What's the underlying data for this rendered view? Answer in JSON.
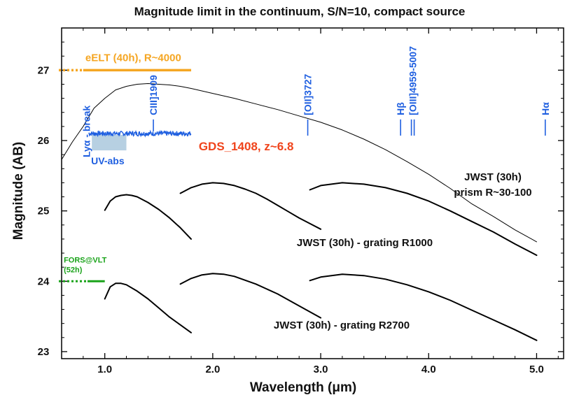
{
  "chart_data": {
    "type": "line",
    "title": "Magnitude limit in the continuum, S/N=10, compact source",
    "xlabel": "Wavelength (μm)",
    "ylabel": "Magnitude (AB)",
    "xlim": [
      0.6,
      5.25
    ],
    "ylim": [
      22.9,
      27.6
    ],
    "x_ticks": [
      1.0,
      2.0,
      3.0,
      4.0,
      5.0
    ],
    "x_tick_labels": [
      "1.0",
      "2.0",
      "3.0",
      "4.0",
      "5.0"
    ],
    "y_ticks": [
      23,
      24,
      25,
      26,
      27
    ],
    "y_tick_labels": [
      "23",
      "24",
      "25",
      "26",
      "27"
    ],
    "grid": false,
    "legend": "none",
    "colors": {
      "curve": "#000000",
      "eelt": "#f5a623",
      "fors": "#1aa31a",
      "galaxy": "#1f5fe0",
      "galaxy_label": "#f0441c",
      "uv_abs": "#b7d0e2",
      "lines": "#1f5fe0"
    },
    "series": [
      {
        "name": "JWST (30h) prism R~30-100",
        "style": "thin",
        "x": [
          0.6,
          0.7,
          0.8,
          0.9,
          1.0,
          1.1,
          1.2,
          1.3,
          1.4,
          1.5,
          1.6,
          1.7,
          1.8,
          2.0,
          2.2,
          2.4,
          2.6,
          2.8,
          3.0,
          3.2,
          3.4,
          3.6,
          3.8,
          4.0,
          4.2,
          4.4,
          4.6,
          4.8,
          5.0
        ],
        "y": [
          25.73,
          25.98,
          26.2,
          26.46,
          26.6,
          26.72,
          26.77,
          26.8,
          26.81,
          26.8,
          26.79,
          26.77,
          26.74,
          26.67,
          26.6,
          26.52,
          26.44,
          26.35,
          26.26,
          26.15,
          26.02,
          25.87,
          25.7,
          25.52,
          25.32,
          25.1,
          24.92,
          24.73,
          24.56
        ]
      },
      {
        "name": "JWST (30h) - grating R1000",
        "style": "thick",
        "segments": [
          {
            "x": [
              1.0,
              1.05,
              1.1,
              1.15,
              1.2,
              1.25,
              1.3,
              1.4,
              1.5,
              1.6,
              1.7,
              1.8
            ],
            "y": [
              25.01,
              25.14,
              25.2,
              25.22,
              25.23,
              25.22,
              25.2,
              25.12,
              25.02,
              24.9,
              24.76,
              24.6
            ]
          },
          {
            "x": [
              1.7,
              1.8,
              1.9,
              2.0,
              2.1,
              2.2,
              2.3,
              2.4,
              2.5,
              2.6,
              2.7,
              2.8,
              2.9,
              3.0
            ],
            "y": [
              25.25,
              25.33,
              25.38,
              25.4,
              25.39,
              25.36,
              25.31,
              25.25,
              25.17,
              25.08,
              24.99,
              24.9,
              24.82,
              24.74
            ]
          },
          {
            "x": [
              2.9,
              3.0,
              3.2,
              3.4,
              3.6,
              3.8,
              4.0,
              4.2,
              4.4,
              4.6,
              4.8,
              5.0
            ],
            "y": [
              25.3,
              25.36,
              25.4,
              25.38,
              25.33,
              25.25,
              25.14,
              25.0,
              24.85,
              24.7,
              24.53,
              24.37
            ]
          }
        ]
      },
      {
        "name": "JWST (30h) - grating R2700",
        "style": "thick",
        "segments": [
          {
            "x": [
              1.0,
              1.05,
              1.1,
              1.15,
              1.2,
              1.3,
              1.4,
              1.5,
              1.6,
              1.7,
              1.8
            ],
            "y": [
              23.75,
              23.92,
              23.97,
              23.97,
              23.95,
              23.86,
              23.75,
              23.62,
              23.49,
              23.38,
              23.27
            ]
          },
          {
            "x": [
              1.7,
              1.8,
              1.9,
              2.0,
              2.1,
              2.2,
              2.4,
              2.6,
              2.8,
              3.0
            ],
            "y": [
              23.96,
              24.04,
              24.09,
              24.11,
              24.1,
              24.07,
              23.96,
              23.82,
              23.65,
              23.48
            ]
          },
          {
            "x": [
              2.9,
              3.0,
              3.2,
              3.4,
              3.6,
              3.8,
              4.0,
              4.2,
              4.4,
              4.6,
              4.8,
              5.0
            ],
            "y": [
              24.01,
              24.06,
              24.1,
              24.08,
              24.03,
              23.95,
              23.85,
              23.73,
              23.59,
              23.45,
              23.31,
              23.16
            ]
          }
        ]
      }
    ],
    "eelt": {
      "label": "eELT (40h), R~4000",
      "y": 27.0,
      "x_dotted": [
        0.6,
        0.8
      ],
      "x_solid": [
        0.8,
        1.8
      ]
    },
    "fors": {
      "label_line1": "FORS@VLT",
      "label_line2": "(52h)",
      "y": 24.0,
      "x_dotted": [
        0.6,
        0.84
      ],
      "x_solid": [
        0.84,
        1.0
      ]
    },
    "galaxy": {
      "label": "GDS_1408, z~6.8",
      "y": 26.1,
      "x_range": [
        0.85,
        1.8
      ]
    },
    "uv_abs": {
      "label": "UV-abs",
      "x_range": [
        0.88,
        1.2
      ],
      "y_range": [
        25.86,
        26.08
      ]
    },
    "emission_lines": [
      {
        "label": "Lyα - break",
        "x": 0.83
      },
      {
        "label": "CIII]1909",
        "x": 1.45
      },
      {
        "label": "[OII]3727",
        "x": 2.88
      },
      {
        "label": "Hβ",
        "x": 3.74
      },
      {
        "label": "[OIII]4959-5007",
        "x": 3.84
      },
      {
        "label": "Hα",
        "x": 5.08
      }
    ],
    "labels": {
      "prism_line1": "JWST (30h)",
      "prism_line2": "prism R~30-100",
      "r1000": "JWST (30h) - grating R1000",
      "r2700": "JWST (30h) - grating R2700"
    }
  }
}
